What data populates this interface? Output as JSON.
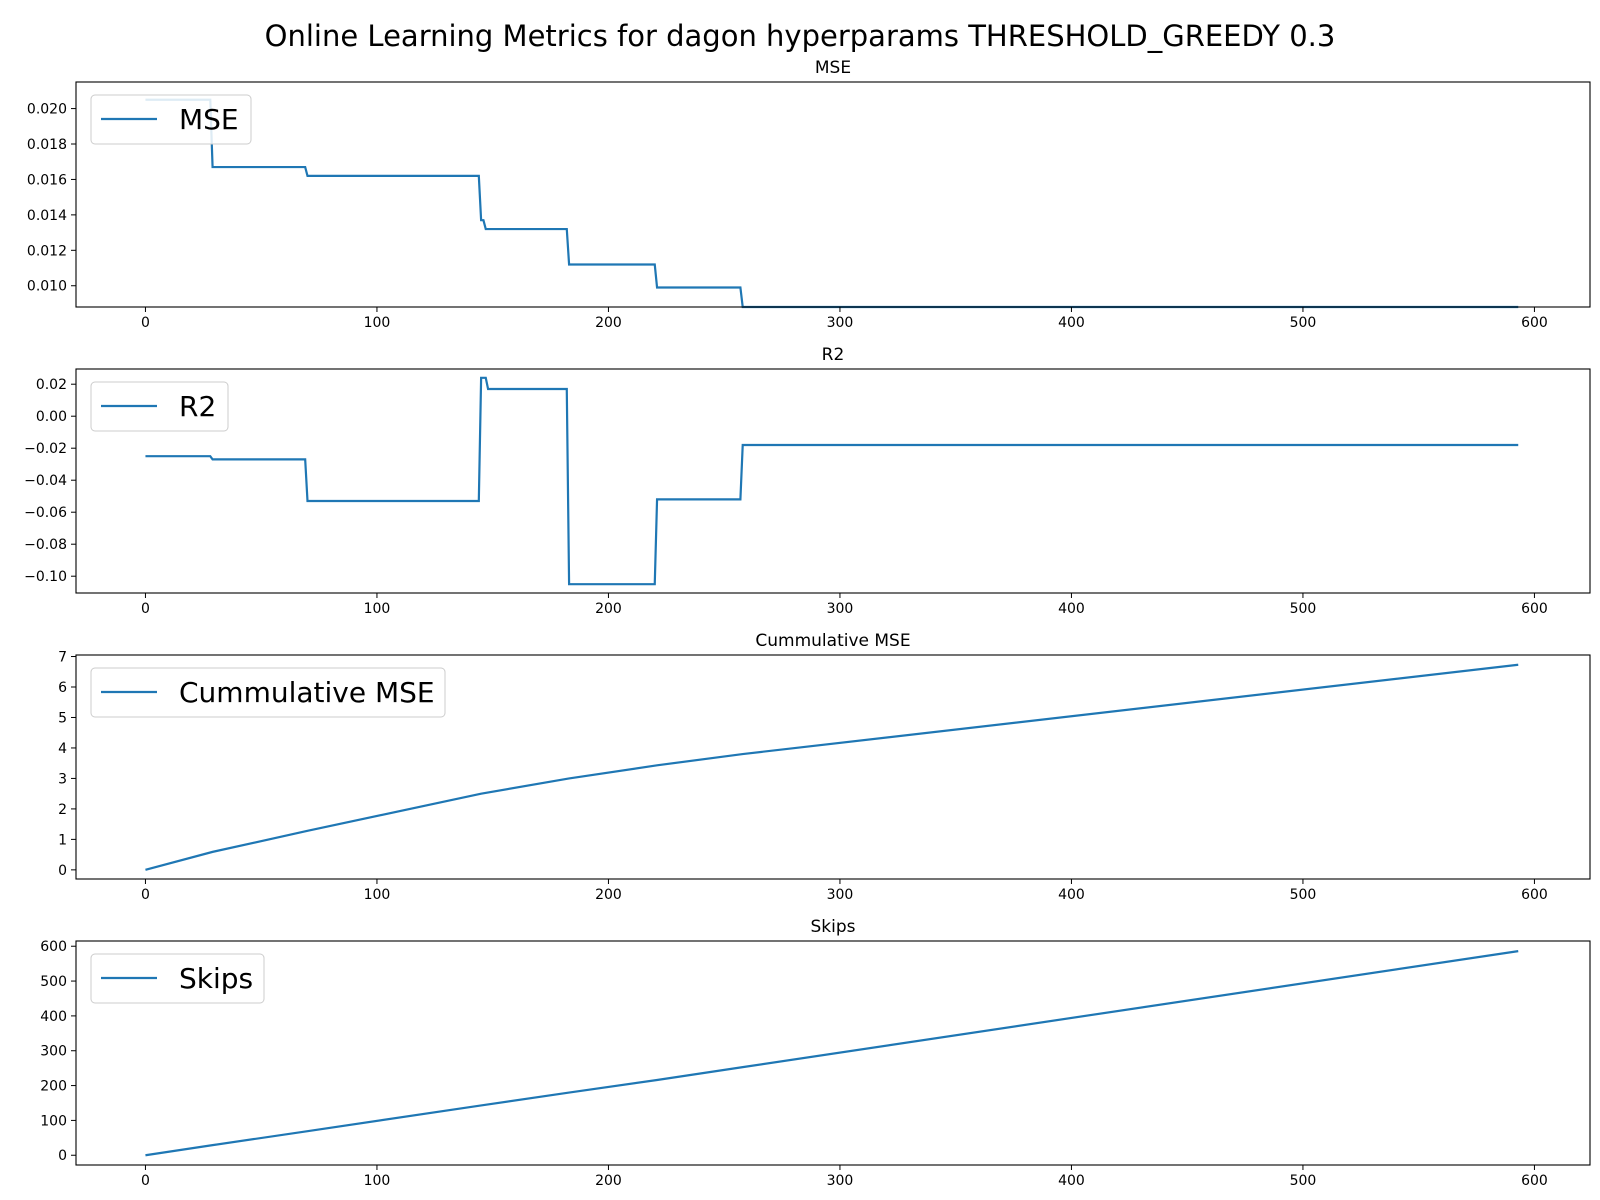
{
  "figure": {
    "title": "Online Learning Metrics for dagon hyperparams THRESHOLD_GREEDY 0.3"
  },
  "chart_data": [
    {
      "type": "line",
      "title": "MSE",
      "xlabel": "",
      "ylabel": "",
      "legend": "top-left",
      "grid": false,
      "xlim": [
        -30,
        624
      ],
      "ylim": [
        0.0088,
        0.0215
      ],
      "xticks": [
        0,
        100,
        200,
        300,
        400,
        500,
        600
      ],
      "xtick_labels": [
        "0",
        "100",
        "200",
        "300",
        "400",
        "500",
        "600"
      ],
      "yticks": [
        0.01,
        0.012,
        0.014,
        0.016,
        0.018,
        0.02
      ],
      "ytick_labels": [
        "0.010",
        "0.012",
        "0.014",
        "0.016",
        "0.018",
        "0.020"
      ],
      "series": [
        {
          "name": "MSE",
          "color": "#1f77b4",
          "x": [
            0,
            28,
            29,
            69,
            70,
            144,
            145,
            146,
            147,
            182,
            183,
            220,
            221,
            257,
            258,
            593
          ],
          "y": [
            0.0205,
            0.0205,
            0.0167,
            0.0167,
            0.0162,
            0.0162,
            0.0137,
            0.0137,
            0.0132,
            0.0132,
            0.0112,
            0.0112,
            0.0099,
            0.0099,
            0.0088,
            0.0088
          ]
        }
      ]
    },
    {
      "type": "line",
      "title": "R2",
      "xlabel": "",
      "ylabel": "",
      "legend": "top-left",
      "grid": false,
      "xlim": [
        -30,
        624
      ],
      "ylim": [
        -0.1105,
        0.0295
      ],
      "xticks": [
        0,
        100,
        200,
        300,
        400,
        500,
        600
      ],
      "xtick_labels": [
        "0",
        "100",
        "200",
        "300",
        "400",
        "500",
        "600"
      ],
      "yticks": [
        -0.1,
        -0.08,
        -0.06,
        -0.04,
        -0.02,
        0.0,
        0.02
      ],
      "ytick_labels": [
        "−0.10",
        "−0.08",
        "−0.06",
        "−0.04",
        "−0.02",
        "0.00",
        "0.02"
      ],
      "series": [
        {
          "name": "R2",
          "color": "#1f77b4",
          "x": [
            0,
            28,
            29,
            69,
            70,
            144,
            145,
            147,
            148,
            182,
            183,
            220,
            221,
            257,
            258,
            593
          ],
          "y": [
            -0.025,
            -0.025,
            -0.027,
            -0.027,
            -0.053,
            -0.053,
            0.024,
            0.024,
            0.017,
            0.017,
            -0.105,
            -0.105,
            -0.052,
            -0.052,
            -0.018,
            -0.018
          ]
        }
      ]
    },
    {
      "type": "line",
      "title": "Cummulative MSE",
      "xlabel": "",
      "ylabel": "",
      "legend": "top-left",
      "grid": false,
      "xlim": [
        -30,
        624
      ],
      "ylim": [
        -0.3,
        7.05
      ],
      "xticks": [
        0,
        100,
        200,
        300,
        400,
        500,
        600
      ],
      "xtick_labels": [
        "0",
        "100",
        "200",
        "300",
        "400",
        "500",
        "600"
      ],
      "yticks": [
        0,
        1,
        2,
        3,
        4,
        5,
        6,
        7
      ],
      "ytick_labels": [
        "0",
        "1",
        "2",
        "3",
        "4",
        "5",
        "6",
        "7"
      ],
      "series": [
        {
          "name": "Cummulative MSE",
          "color": "#1f77b4",
          "x": [
            0,
            29,
            70,
            145,
            183,
            221,
            258,
            593
          ],
          "y": [
            0.0,
            0.59,
            1.28,
            2.5,
            3.0,
            3.43,
            3.8,
            6.73
          ]
        }
      ]
    },
    {
      "type": "line",
      "title": "Skips",
      "xlabel": "",
      "ylabel": "",
      "legend": "top-left",
      "grid": false,
      "xlim": [
        -30,
        624
      ],
      "ylim": [
        -28,
        615
      ],
      "xticks": [
        0,
        100,
        200,
        300,
        400,
        500,
        600
      ],
      "xtick_labels": [
        "0",
        "100",
        "200",
        "300",
        "400",
        "500",
        "600"
      ],
      "yticks": [
        0,
        100,
        200,
        300,
        400,
        500,
        600
      ],
      "ytick_labels": [
        "0",
        "100",
        "200",
        "300",
        "400",
        "500",
        "600"
      ],
      "series": [
        {
          "name": "Skips",
          "color": "#1f77b4",
          "x": [
            0,
            29,
            70,
            145,
            183,
            221,
            258,
            593
          ],
          "y": [
            0,
            29,
            69,
            143,
            180,
            216,
            253,
            586
          ]
        }
      ]
    }
  ]
}
